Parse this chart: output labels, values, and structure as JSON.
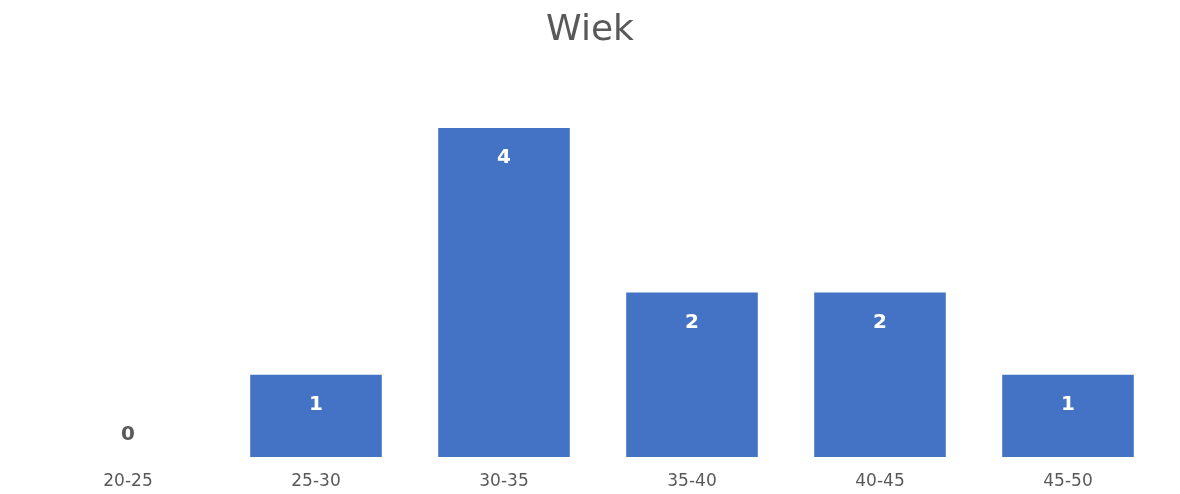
{
  "chart_data": {
    "type": "bar",
    "title": "Wiek",
    "categories": [
      "20-25",
      "25-30",
      "30-35",
      "35-40",
      "40-45",
      "45-50"
    ],
    "values": [
      0,
      1,
      4,
      2,
      2,
      1
    ],
    "color": "#4472c4",
    "data_labels": true
  }
}
